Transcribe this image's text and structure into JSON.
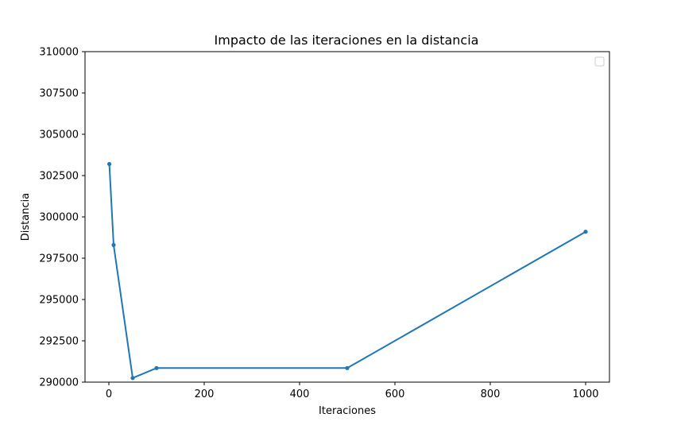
{
  "chart_data": {
    "type": "line",
    "title": "Impacto de las iteraciones en la distancia",
    "xlabel": "Iteraciones",
    "ylabel": "Distancia",
    "xlim": [
      -50,
      1050
    ],
    "ylim": [
      290000,
      310000
    ],
    "xticks": [
      0,
      200,
      400,
      600,
      800,
      1000
    ],
    "yticks": [
      290000,
      292500,
      295000,
      297500,
      300000,
      302500,
      305000,
      307500,
      310000
    ],
    "grid": false,
    "legend": "top-right (empty)",
    "series": [
      {
        "color": "#1f77b4",
        "x": [
          1,
          10,
          50,
          100,
          500,
          1000
        ],
        "y": [
          303200,
          298300,
          290250,
          290850,
          290850,
          299100
        ]
      }
    ]
  }
}
